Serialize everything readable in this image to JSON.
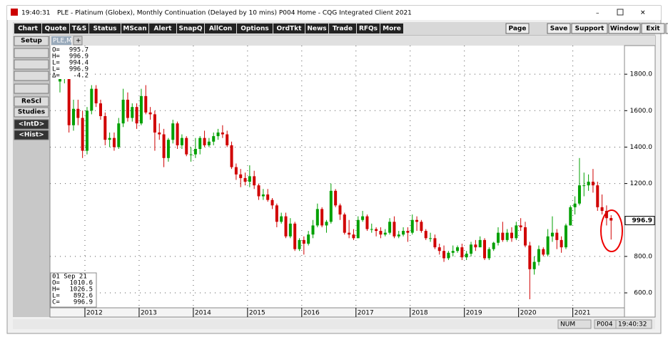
{
  "window": {
    "time": "19:40:31",
    "title": "PLE - Platinum (Globex), Monthly Continuation (Delayed by 10 mins)   P004 Home - CQG Integrated Client 2021"
  },
  "toolbar": {
    "left": [
      "Chart",
      "Quote",
      "T&S",
      "Status",
      "MScan",
      "Alert",
      "SnapQ",
      "AllCon",
      "Options",
      "OrdTkt",
      "News",
      "Trade",
      "RFQs",
      "More"
    ],
    "right": [
      "Page",
      "Save",
      "Support",
      "Window",
      "Exit",
      "?"
    ]
  },
  "side_panel": [
    "Setup",
    "ReScl",
    "Studies",
    "<IntD>",
    "<Hist>"
  ],
  "tab": "PLE,M",
  "top_info": [
    [
      "O=",
      "995.7"
    ],
    [
      "H=",
      "996.9"
    ],
    [
      "L=",
      "994.4"
    ],
    [
      "L=",
      "996.9"
    ],
    [
      "Δ=",
      "-4.2"
    ]
  ],
  "bottom_info": {
    "date": "01 Sep 21",
    "rows": [
      [
        "O=",
        "1010.6"
      ],
      [
        "H=",
        "1026.5"
      ],
      [
        "L=",
        "892.6"
      ],
      [
        "C=",
        "996.9"
      ]
    ]
  },
  "status_bar": [
    "NUM",
    "P004",
    "19:40:32"
  ],
  "chart_data": {
    "type": "candlestick",
    "up_color": "#00a000",
    "down_color": "#d00000",
    "grid": true,
    "ylim": [
      518,
      1957
    ],
    "yticks": [
      {
        "value": 600,
        "label": "600.0"
      },
      {
        "value": 800,
        "label": "800.0"
      },
      {
        "value": 1200,
        "label": "1200.0"
      },
      {
        "value": 1400,
        "label": "1400.0"
      },
      {
        "value": 1600,
        "label": "1600.0"
      },
      {
        "value": 1800,
        "label": "1800.0"
      }
    ],
    "last_price": 996.9,
    "categories": [
      null,
      null,
      null,
      null,
      null,
      null,
      "2012",
      null,
      null,
      null,
      null,
      null,
      null,
      null,
      null,
      null,
      null,
      null,
      "2013",
      null,
      null,
      null,
      null,
      null,
      null,
      null,
      null,
      null,
      null,
      null,
      "2014",
      null,
      null,
      null,
      null,
      null,
      null,
      null,
      null,
      null,
      null,
      null,
      "2015",
      null,
      null,
      null,
      null,
      null,
      null,
      null,
      null,
      null,
      null,
      null,
      "2016",
      null,
      null,
      null,
      null,
      null,
      null,
      null,
      null,
      null,
      null,
      null,
      "2017",
      null,
      null,
      null,
      null,
      null,
      null,
      null,
      null,
      null,
      null,
      null,
      "2018",
      null,
      null,
      null,
      null,
      null,
      null,
      null,
      null,
      null,
      null,
      null,
      "2019",
      null,
      null,
      null,
      null,
      null,
      null,
      null,
      null,
      null,
      null,
      null,
      "2020",
      null,
      null,
      null,
      null,
      null,
      null,
      null,
      null,
      null,
      null,
      null,
      "2021",
      null,
      null,
      null,
      null,
      null,
      null,
      null,
      null
    ],
    "open": [
      1760,
      1790,
      1830,
      1520,
      1610,
      1560,
      1380,
      1600,
      1720,
      1640,
      1570,
      1440,
      1450,
      1400,
      1530,
      1660,
      1560,
      1620,
      1530,
      1680,
      1590,
      1580,
      1480,
      1470,
      1340,
      1440,
      1530,
      1410,
      1450,
      1360,
      1360,
      1390,
      1450,
      1410,
      1430,
      1460,
      1480,
      1470,
      1410,
      1290,
      1250,
      1230,
      1210,
      1240,
      1190,
      1130,
      1140,
      1110,
      1080,
      990,
      1020,
      910,
      980,
      840,
      890,
      870,
      920,
      970,
      1060,
      970,
      990,
      1160,
      1080,
      1030,
      930,
      920,
      900,
      1000,
      1020,
      950,
      950,
      940,
      920,
      930,
      990,
      910,
      920,
      940,
      930,
      1000,
      990,
      940,
      900,
      900,
      850,
      830,
      790,
      820,
      830,
      850,
      795,
      815,
      865,
      850,
      890,
      790,
      840,
      875,
      930,
      890,
      930,
      900,
      970,
      960,
      860,
      730,
      770,
      840,
      810,
      910,
      930,
      890,
      850,
      970,
      1070,
      1090,
      1190,
      1190,
      1210,
      1190,
      1070,
      1050,
      1010.6
    ],
    "high": [
      1820,
      1880,
      1880,
      1660,
      1660,
      1600,
      1620,
      1740,
      1740,
      1660,
      1590,
      1480,
      1480,
      1560,
      1720,
      1700,
      1640,
      1640,
      1720,
      1740,
      1620,
      1600,
      1530,
      1500,
      1450,
      1550,
      1540,
      1470,
      1460,
      1400,
      1450,
      1460,
      1490,
      1450,
      1480,
      1500,
      1520,
      1490,
      1430,
      1310,
      1280,
      1260,
      1300,
      1270,
      1200,
      1170,
      1170,
      1120,
      1090,
      1040,
      1040,
      1010,
      990,
      900,
      910,
      940,
      1000,
      1090,
      1070,
      1000,
      1200,
      1170,
      1090,
      1040,
      1000,
      950,
      1020,
      1050,
      1030,
      980,
      960,
      960,
      950,
      1010,
      1020,
      940,
      960,
      960,
      1030,
      1020,
      1000,
      950,
      930,
      920,
      870,
      860,
      830,
      860,
      860,
      870,
      830,
      880,
      890,
      910,
      900,
      850,
      880,
      960,
      990,
      950,
      960,
      990,
      1010,
      990,
      880,
      800,
      860,
      850,
      950,
      1020,
      950,
      910,
      980,
      1080,
      1130,
      1340,
      1260,
      1250,
      1280,
      1210,
      1140,
      1080,
      1026.5
    ],
    "low": [
      1700,
      1750,
      1480,
      1490,
      1520,
      1340,
      1360,
      1580,
      1620,
      1550,
      1410,
      1400,
      1380,
      1390,
      1510,
      1540,
      1540,
      1500,
      1520,
      1580,
      1550,
      1380,
      1440,
      1290,
      1320,
      1420,
      1390,
      1390,
      1350,
      1320,
      1340,
      1360,
      1400,
      1400,
      1410,
      1440,
      1450,
      1400,
      1280,
      1220,
      1180,
      1190,
      1180,
      1170,
      1110,
      1110,
      1100,
      1060,
      960,
      980,
      900,
      900,
      830,
      830,
      810,
      860,
      900,
      960,
      960,
      930,
      980,
      1070,
      1000,
      920,
      900,
      890,
      900,
      990,
      940,
      930,
      910,
      900,
      910,
      920,
      900,
      900,
      910,
      880,
      920,
      940,
      930,
      890,
      880,
      840,
      810,
      770,
      780,
      800,
      820,
      780,
      780,
      800,
      830,
      850,
      780,
      780,
      830,
      860,
      880,
      880,
      880,
      890,
      940,
      850,
      565,
      700,
      750,
      800,
      800,
      880,
      840,
      820,
      840,
      970,
      1030,
      1080,
      1130,
      1160,
      1150,
      1050,
      1030,
      970,
      892.6
    ],
    "close": [
      1790,
      1830,
      1520,
      1610,
      1560,
      1380,
      1600,
      1720,
      1640,
      1570,
      1440,
      1450,
      1400,
      1530,
      1660,
      1560,
      1620,
      1530,
      1680,
      1590,
      1580,
      1480,
      1470,
      1340,
      1440,
      1530,
      1410,
      1450,
      1360,
      1360,
      1390,
      1450,
      1410,
      1430,
      1460,
      1480,
      1470,
      1410,
      1290,
      1250,
      1230,
      1210,
      1240,
      1190,
      1130,
      1140,
      1110,
      1080,
      990,
      1020,
      910,
      980,
      840,
      890,
      870,
      920,
      970,
      1060,
      970,
      990,
      1160,
      1080,
      1030,
      930,
      920,
      900,
      1000,
      1020,
      950,
      950,
      940,
      920,
      930,
      990,
      910,
      920,
      940,
      930,
      1000,
      990,
      940,
      900,
      900,
      850,
      830,
      790,
      820,
      830,
      850,
      795,
      815,
      865,
      850,
      890,
      790,
      840,
      875,
      930,
      890,
      930,
      900,
      970,
      960,
      860,
      730,
      770,
      840,
      810,
      910,
      930,
      890,
      850,
      970,
      1070,
      1090,
      1190,
      1190,
      1210,
      1190,
      1070,
      1050,
      1010,
      996.9
    ]
  }
}
